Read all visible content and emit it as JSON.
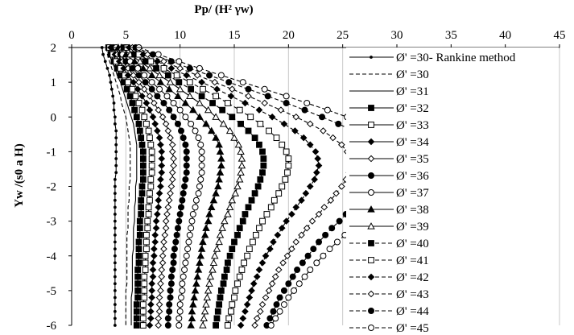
{
  "chart_data": {
    "type": "line",
    "title": "",
    "xlabel": "Pp/ (H² γw)",
    "ylabel": "Yw /(s0 a H)",
    "x_position": "top",
    "xlim": [
      0,
      45
    ],
    "ylim": [
      -6,
      2
    ],
    "xticks": [
      "0",
      "5",
      "10",
      "15",
      "20",
      "25",
      "30",
      "35",
      "40",
      "45"
    ],
    "yticks": [
      "2",
      "1",
      "0",
      "-1",
      "-2",
      "-3",
      "-4",
      "-5",
      "-6"
    ],
    "grid": "vertical",
    "legend": "right",
    "y": [
      2.0,
      1.8,
      1.6,
      1.4,
      1.2,
      1.0,
      0.8,
      0.6,
      0.4,
      0.2,
      0.0,
      -0.2,
      -0.4,
      -0.6,
      -0.8,
      -1.0,
      -1.2,
      -1.4,
      -1.6,
      -1.8,
      -2.0,
      -2.2,
      -2.4,
      -2.6,
      -2.8,
      -3.0,
      -3.2,
      -3.4,
      -3.6,
      -3.8,
      -4.0,
      -4.2,
      -4.4,
      -4.6,
      -4.8,
      -5.0,
      -5.2,
      -5.4,
      -5.6,
      -5.8,
      -6.0
    ],
    "series": [
      {
        "name": "Ø' =30- Rankine method",
        "line": "solid",
        "marker": "dot",
        "values": [
          2.8,
          2.9,
          3.1,
          3.3,
          3.5,
          3.6,
          3.7,
          3.8,
          3.9,
          3.9,
          4.0,
          4.0,
          4.1,
          4.1,
          4.1,
          4.1,
          4.1,
          4.1,
          4.1,
          4.0,
          4.0,
          4.0,
          4.0,
          4.0,
          4.0,
          4.0,
          4.0,
          4.0,
          4.0,
          4.0,
          4.0,
          4.0,
          4.0,
          4.0,
          4.0,
          4.0,
          4.0,
          4.0,
          4.0,
          4.0,
          4.0
        ]
      },
      {
        "name": "Ø' =30",
        "line": "dashed",
        "marker": "none",
        "values": [
          3.2,
          3.3,
          3.5,
          3.7,
          3.9,
          4.1,
          4.3,
          4.5,
          4.6,
          4.8,
          5.0,
          5.1,
          5.2,
          5.3,
          5.4,
          5.4,
          5.4,
          5.4,
          5.4,
          5.4,
          5.3,
          5.3,
          5.3,
          5.2,
          5.2,
          5.2,
          5.2,
          5.1,
          5.1,
          5.1,
          5.1,
          5.1,
          5.1,
          5.1,
          5.1,
          5.0,
          5.0,
          5.0,
          5.0,
          5.0,
          5.0
        ]
      },
      {
        "name": "Ø' =31",
        "line": "solid",
        "marker": "none",
        "values": [
          3.3,
          3.5,
          3.7,
          4.0,
          4.2,
          4.5,
          4.7,
          4.9,
          5.1,
          5.3,
          5.5,
          5.7,
          5.8,
          5.9,
          6.0,
          6.0,
          6.0,
          6.0,
          6.0,
          6.0,
          5.9,
          5.9,
          5.9,
          5.8,
          5.8,
          5.8,
          5.7,
          5.7,
          5.7,
          5.7,
          5.6,
          5.6,
          5.6,
          5.6,
          5.6,
          5.6,
          5.5,
          5.5,
          5.5,
          5.5,
          5.5
        ]
      },
      {
        "name": "Ø' =32",
        "line": "solid",
        "marker": "square-filled",
        "values": [
          3.4,
          3.6,
          3.9,
          4.2,
          4.5,
          4.8,
          5.1,
          5.4,
          5.6,
          5.8,
          6.0,
          6.2,
          6.3,
          6.4,
          6.5,
          6.6,
          6.6,
          6.6,
          6.6,
          6.6,
          6.5,
          6.5,
          6.4,
          6.4,
          6.4,
          6.3,
          6.3,
          6.3,
          6.2,
          6.2,
          6.2,
          6.2,
          6.1,
          6.1,
          6.1,
          6.1,
          6.1,
          6.0,
          6.0,
          6.0,
          6.0
        ]
      },
      {
        "name": "Ø' =33",
        "line": "solid",
        "marker": "square-open",
        "values": [
          3.5,
          3.8,
          4.1,
          4.5,
          4.9,
          5.2,
          5.6,
          5.9,
          6.2,
          6.5,
          6.7,
          6.9,
          7.1,
          7.2,
          7.3,
          7.4,
          7.4,
          7.4,
          7.4,
          7.3,
          7.3,
          7.2,
          7.2,
          7.1,
          7.1,
          7.0,
          7.0,
          6.9,
          6.9,
          6.9,
          6.8,
          6.8,
          6.8,
          6.7,
          6.7,
          6.7,
          6.7,
          6.6,
          6.6,
          6.6,
          6.6
        ]
      },
      {
        "name": "Ø' =34",
        "line": "solid",
        "marker": "diamond-filled",
        "values": [
          3.6,
          4.0,
          4.4,
          4.8,
          5.2,
          5.7,
          6.1,
          6.5,
          6.9,
          7.2,
          7.5,
          7.7,
          7.9,
          8.1,
          8.2,
          8.3,
          8.3,
          8.3,
          8.3,
          8.2,
          8.2,
          8.1,
          8.0,
          8.0,
          7.9,
          7.8,
          7.8,
          7.7,
          7.7,
          7.6,
          7.6,
          7.5,
          7.5,
          7.5,
          7.4,
          7.4,
          7.4,
          7.3,
          7.3,
          7.3,
          7.2
        ]
      },
      {
        "name": "Ø' =35",
        "line": "solid",
        "marker": "diamond-open",
        "values": [
          3.8,
          4.2,
          4.7,
          5.2,
          5.7,
          6.2,
          6.7,
          7.2,
          7.6,
          8.0,
          8.4,
          8.7,
          8.9,
          9.1,
          9.3,
          9.3,
          9.4,
          9.4,
          9.3,
          9.3,
          9.2,
          9.1,
          9.0,
          8.9,
          8.8,
          8.7,
          8.7,
          8.6,
          8.5,
          8.5,
          8.4,
          8.4,
          8.3,
          8.3,
          8.2,
          8.2,
          8.1,
          8.1,
          8.1,
          8.0,
          8.0
        ]
      },
      {
        "name": "Ø' =36",
        "line": "solid",
        "marker": "circle-filled",
        "values": [
          3.9,
          4.5,
          5.0,
          5.6,
          6.2,
          6.8,
          7.4,
          7.9,
          8.5,
          9.0,
          9.4,
          9.8,
          10.1,
          10.3,
          10.5,
          10.6,
          10.6,
          10.6,
          10.6,
          10.5,
          10.4,
          10.3,
          10.2,
          10.1,
          10.0,
          9.9,
          9.8,
          9.7,
          9.6,
          9.5,
          9.4,
          9.4,
          9.3,
          9.2,
          9.2,
          9.1,
          9.1,
          9.0,
          9.0,
          8.9,
          8.9
        ]
      },
      {
        "name": "Ø' =37",
        "line": "solid",
        "marker": "circle-open",
        "values": [
          4.1,
          4.7,
          5.4,
          6.1,
          6.7,
          7.4,
          8.1,
          8.8,
          9.4,
          10.0,
          10.5,
          11.0,
          11.4,
          11.7,
          11.9,
          12.0,
          12.0,
          12.0,
          12.0,
          11.9,
          11.8,
          11.7,
          11.5,
          11.4,
          11.2,
          11.1,
          11.0,
          10.9,
          10.8,
          10.7,
          10.6,
          10.5,
          10.4,
          10.3,
          10.2,
          10.2,
          10.1,
          10.0,
          10.0,
          9.9,
          9.9
        ]
      },
      {
        "name": "Ø' =38",
        "line": "solid",
        "marker": "triangle-filled",
        "values": [
          4.3,
          5.0,
          5.8,
          6.6,
          7.4,
          8.2,
          9.0,
          9.8,
          10.5,
          11.2,
          11.8,
          12.4,
          12.9,
          13.3,
          13.6,
          13.7,
          13.8,
          13.8,
          13.7,
          13.6,
          13.5,
          13.3,
          13.1,
          12.9,
          12.7,
          12.6,
          12.4,
          12.3,
          12.1,
          12.0,
          11.9,
          11.8,
          11.7,
          11.6,
          11.5,
          11.4,
          11.3,
          11.2,
          11.1,
          11.1,
          11.0
        ]
      },
      {
        "name": "Ø' =39",
        "line": "solid",
        "marker": "triangle-open",
        "values": [
          4.6,
          5.4,
          6.3,
          7.2,
          8.1,
          9.1,
          10.0,
          10.9,
          11.8,
          12.6,
          13.3,
          14.0,
          14.6,
          15.0,
          15.4,
          15.6,
          15.7,
          15.7,
          15.6,
          15.5,
          15.3,
          15.1,
          14.8,
          14.6,
          14.4,
          14.1,
          13.9,
          13.7,
          13.6,
          13.4,
          13.2,
          13.1,
          13.0,
          12.8,
          12.7,
          12.6,
          12.5,
          12.4,
          12.3,
          12.2,
          12.1
        ]
      },
      {
        "name": "Ø' =40",
        "line": "dashed",
        "marker": "square-filled",
        "values": [
          4.8,
          5.8,
          6.8,
          7.8,
          8.9,
          9.9,
          11.0,
          12.0,
          13.0,
          13.9,
          14.8,
          15.6,
          16.3,
          16.9,
          17.3,
          17.6,
          17.7,
          17.7,
          17.6,
          17.4,
          17.2,
          16.9,
          16.6,
          16.3,
          16.0,
          15.8,
          15.5,
          15.3,
          15.0,
          14.8,
          14.6,
          14.4,
          14.3,
          14.1,
          14.0,
          13.8,
          13.7,
          13.6,
          13.5,
          13.4,
          13.3
        ]
      },
      {
        "name": "Ø' =41",
        "line": "dashed",
        "marker": "square-open",
        "values": [
          5.1,
          6.2,
          7.3,
          8.5,
          9.7,
          10.9,
          12.1,
          13.3,
          14.4,
          15.5,
          16.5,
          17.4,
          18.2,
          18.9,
          19.4,
          19.8,
          20.0,
          20.0,
          19.9,
          19.7,
          19.4,
          19.1,
          18.7,
          18.4,
          18.0,
          17.6,
          17.3,
          17.0,
          16.7,
          16.4,
          16.2,
          15.9,
          15.7,
          15.5,
          15.3,
          15.1,
          15.0,
          14.8,
          14.7,
          14.5,
          14.4
        ]
      },
      {
        "name": "Ø' =42",
        "line": "dashed",
        "marker": "diamond-filled",
        "values": [
          5.3,
          6.6,
          7.9,
          9.2,
          10.6,
          12.0,
          13.4,
          14.7,
          16.0,
          17.3,
          18.5,
          19.6,
          20.6,
          21.4,
          22.0,
          22.5,
          22.7,
          22.8,
          22.6,
          22.4,
          22.0,
          21.6,
          21.2,
          20.7,
          20.3,
          19.8,
          19.4,
          19.0,
          18.6,
          18.3,
          17.9,
          17.6,
          17.3,
          17.1,
          16.8,
          16.6,
          16.4,
          16.2,
          16.0,
          15.8,
          15.6
        ]
      },
      {
        "name": "Ø' =43",
        "line": "dashed",
        "marker": "diamond-open",
        "values": [
          5.6,
          7.0,
          8.5,
          10.0,
          11.6,
          13.2,
          14.8,
          16.3,
          17.8,
          19.3,
          20.7,
          22.0,
          23.2,
          24.1,
          24.9,
          25.4,
          25.7,
          25.8,
          25.6,
          25.3,
          24.9,
          24.4,
          23.9,
          23.3,
          22.8,
          22.2,
          21.7,
          21.2,
          20.7,
          20.3,
          19.9,
          19.5,
          19.1,
          18.8,
          18.5,
          18.2,
          17.9,
          17.6,
          17.4,
          17.1,
          16.9
        ]
      },
      {
        "name": "Ø' =44",
        "line": "dashed",
        "marker": "circle-filled",
        "values": [
          5.9,
          7.5,
          9.2,
          10.9,
          12.7,
          14.5,
          16.3,
          18.1,
          19.8,
          21.5,
          23.1,
          24.6,
          26.0,
          27.1,
          28.0,
          28.6,
          29.0,
          29.0,
          28.8,
          28.4,
          27.9,
          27.3,
          26.7,
          26.0,
          25.3,
          24.7,
          24.0,
          23.4,
          22.8,
          22.3,
          21.8,
          21.3,
          20.8,
          20.4,
          20.0,
          19.6,
          19.2,
          18.9,
          18.6,
          18.3,
          18.0
        ]
      },
      {
        "name": "Ø' =45",
        "line": "dashed",
        "marker": "circle-open",
        "values": [
          6.2,
          8.0,
          9.9,
          11.8,
          13.8,
          15.8,
          17.8,
          19.8,
          21.7,
          23.6,
          25.4,
          27.1,
          28.6,
          29.9,
          30.8,
          31.5,
          31.9,
          31.9,
          31.7,
          31.2,
          30.6,
          29.9,
          29.1,
          28.3,
          27.5,
          26.7,
          25.9,
          25.2,
          24.5,
          23.8,
          23.2,
          22.6,
          22.0,
          21.5,
          21.0,
          20.5,
          20.0,
          19.6,
          19.2,
          18.8,
          18.4
        ]
      }
    ]
  }
}
